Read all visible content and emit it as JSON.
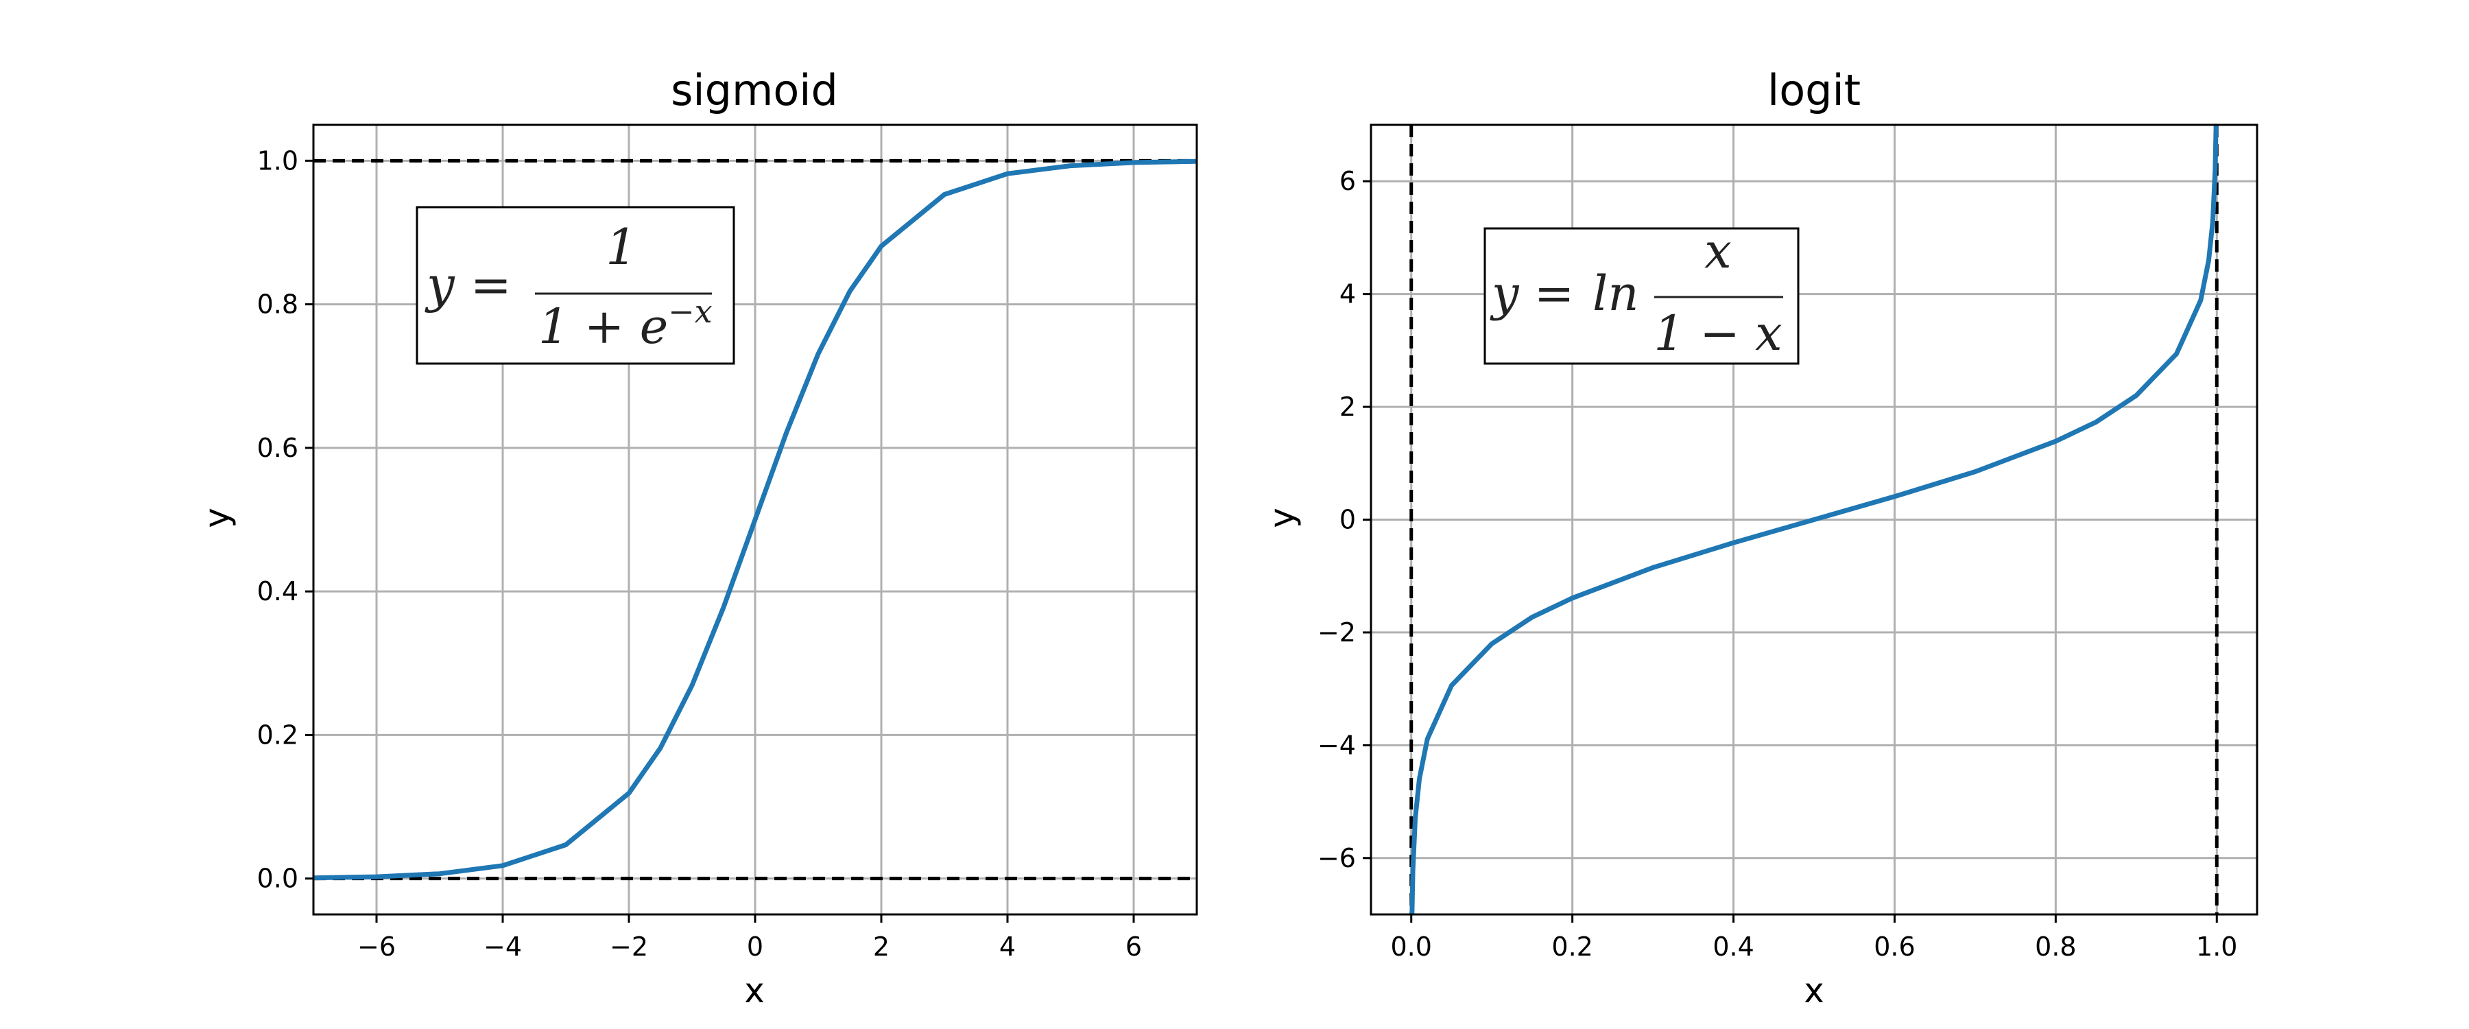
{
  "colors": {
    "curve": "#1f77b4",
    "asymptote": "#000000",
    "grid": "#b0b0b0"
  },
  "chart_data": [
    {
      "type": "line",
      "title": "sigmoid",
      "xlabel": "x",
      "ylabel": "y",
      "xlim": [
        -7,
        7
      ],
      "ylim": [
        -0.05,
        1.05
      ],
      "xticks": [
        -6,
        -4,
        -2,
        0,
        2,
        4,
        6
      ],
      "xtick_labels": [
        "−6",
        "−4",
        "−2",
        "0",
        "2",
        "4",
        "6"
      ],
      "yticks": [
        0.0,
        0.2,
        0.4,
        0.6,
        0.8,
        1.0
      ],
      "ytick_labels": [
        "0.0",
        "0.2",
        "0.4",
        "0.6",
        "0.8",
        "1.0"
      ],
      "grid": true,
      "formula": {
        "lhs": "y =",
        "numerator": "1",
        "denominator_base": "1 + e",
        "denominator_exp": "−x"
      },
      "asymptotes": {
        "horizontal": [
          0,
          1
        ],
        "vertical": []
      },
      "series": [
        {
          "x": [
            -7,
            -6,
            -5,
            -4,
            -3,
            -2,
            -1.5,
            -1,
            -0.5,
            0,
            0.5,
            1,
            1.5,
            2,
            3,
            4,
            5,
            6,
            7
          ],
          "y": [
            0.0009,
            0.0025,
            0.0067,
            0.018,
            0.047,
            0.119,
            0.182,
            0.269,
            0.378,
            0.5,
            0.622,
            0.731,
            0.818,
            0.881,
            0.953,
            0.982,
            0.993,
            0.9975,
            0.9991
          ]
        }
      ]
    },
    {
      "type": "line",
      "title": "logit",
      "xlabel": "x",
      "ylabel": "y",
      "xlim": [
        -0.05,
        1.05
      ],
      "ylim": [
        -7,
        7
      ],
      "xticks": [
        0.0,
        0.2,
        0.4,
        0.6,
        0.8,
        1.0
      ],
      "xtick_labels": [
        "0.0",
        "0.2",
        "0.4",
        "0.6",
        "0.8",
        "1.0"
      ],
      "yticks": [
        -6,
        -4,
        -2,
        0,
        2,
        4,
        6
      ],
      "ytick_labels": [
        "−6",
        "−4",
        "−2",
        "0",
        "2",
        "4",
        "6"
      ],
      "grid": true,
      "formula": {
        "lhs": "y =",
        "fn": "ln",
        "numerator": "x",
        "denominator": "1 − x"
      },
      "asymptotes": {
        "horizontal": [],
        "vertical": [
          0,
          1
        ]
      },
      "series": [
        {
          "x": [
            0.0009,
            0.002,
            0.005,
            0.01,
            0.02,
            0.05,
            0.1,
            0.15,
            0.2,
            0.3,
            0.4,
            0.5,
            0.6,
            0.7,
            0.8,
            0.85,
            0.9,
            0.95,
            0.98,
            0.99,
            0.995,
            0.998,
            0.9991
          ],
          "y": [
            -7.0,
            -6.21,
            -5.29,
            -4.6,
            -3.89,
            -2.94,
            -2.2,
            -1.73,
            -1.39,
            -0.85,
            -0.41,
            0.0,
            0.41,
            0.85,
            1.39,
            1.73,
            2.2,
            2.94,
            3.89,
            4.6,
            5.29,
            6.21,
            7.0
          ]
        }
      ]
    }
  ]
}
